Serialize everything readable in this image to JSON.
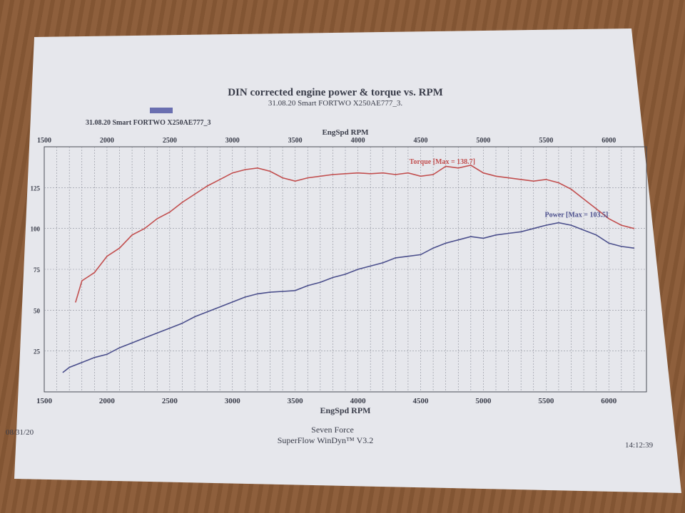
{
  "header": {
    "title": "DIN corrected engine power & torque vs. RPM",
    "subtitle": "31.08.20 Smart FORTWO   X250AE777_3.",
    "run_label": "31.08.20 Smart FORTWO   X250AE777_3",
    "legend_swatch_color": "#6a6fb0"
  },
  "footer": {
    "date": "08/31/20",
    "company": "Seven Force",
    "software": "SuperFlow WinDyn™ V3.2",
    "time": "14:12:39"
  },
  "chart_data": {
    "type": "line",
    "title": "DIN corrected engine power & torque vs. RPM",
    "xlabel": "EngSpd RPM",
    "x2label": "EngSpd RPM",
    "ylabel": "",
    "xlim": [
      1500,
      6300
    ],
    "ylim": [
      0,
      150
    ],
    "x_ticks": [
      1500,
      2000,
      2500,
      3000,
      3500,
      4000,
      4500,
      5000,
      5500,
      6000
    ],
    "y_ticks": [
      25,
      50,
      75,
      100,
      125
    ],
    "grid": true,
    "series": [
      {
        "name": "Torque",
        "annotation": "Torque [Max = 138.7]",
        "color": "#c24f4f",
        "points": [
          [
            1750,
            55
          ],
          [
            1800,
            68
          ],
          [
            1900,
            73
          ],
          [
            2000,
            83
          ],
          [
            2100,
            88
          ],
          [
            2200,
            96
          ],
          [
            2300,
            100
          ],
          [
            2400,
            106
          ],
          [
            2500,
            110
          ],
          [
            2600,
            116
          ],
          [
            2700,
            121
          ],
          [
            2800,
            126
          ],
          [
            2900,
            130
          ],
          [
            3000,
            134
          ],
          [
            3100,
            136
          ],
          [
            3200,
            137
          ],
          [
            3300,
            135
          ],
          [
            3400,
            131
          ],
          [
            3500,
            129
          ],
          [
            3600,
            131
          ],
          [
            3700,
            132
          ],
          [
            3800,
            133
          ],
          [
            3900,
            133.5
          ],
          [
            4000,
            134
          ],
          [
            4100,
            133.5
          ],
          [
            4200,
            134
          ],
          [
            4300,
            133
          ],
          [
            4400,
            134
          ],
          [
            4500,
            132
          ],
          [
            4600,
            133
          ],
          [
            4700,
            138
          ],
          [
            4800,
            137
          ],
          [
            4900,
            138.7
          ],
          [
            5000,
            134
          ],
          [
            5100,
            132
          ],
          [
            5200,
            131
          ],
          [
            5300,
            130
          ],
          [
            5400,
            129
          ],
          [
            5500,
            130
          ],
          [
            5600,
            128
          ],
          [
            5700,
            124
          ],
          [
            5800,
            118
          ],
          [
            5900,
            112
          ],
          [
            6000,
            106
          ],
          [
            6100,
            102
          ],
          [
            6200,
            100
          ]
        ]
      },
      {
        "name": "Power",
        "annotation": "Power  [Max = 103.5]",
        "color": "#4b4f8c",
        "points": [
          [
            1650,
            12
          ],
          [
            1700,
            15
          ],
          [
            1800,
            18
          ],
          [
            1900,
            21
          ],
          [
            2000,
            23
          ],
          [
            2100,
            27
          ],
          [
            2200,
            30
          ],
          [
            2300,
            33
          ],
          [
            2400,
            36
          ],
          [
            2500,
            39
          ],
          [
            2600,
            42
          ],
          [
            2700,
            46
          ],
          [
            2800,
            49
          ],
          [
            2900,
            52
          ],
          [
            3000,
            55
          ],
          [
            3100,
            58
          ],
          [
            3200,
            60
          ],
          [
            3300,
            61
          ],
          [
            3400,
            61.5
          ],
          [
            3500,
            62
          ],
          [
            3600,
            65
          ],
          [
            3700,
            67
          ],
          [
            3800,
            70
          ],
          [
            3900,
            72
          ],
          [
            4000,
            75
          ],
          [
            4100,
            77
          ],
          [
            4200,
            79
          ],
          [
            4300,
            82
          ],
          [
            4400,
            83
          ],
          [
            4500,
            84
          ],
          [
            4600,
            88
          ],
          [
            4700,
            91
          ],
          [
            4800,
            93
          ],
          [
            4900,
            95
          ],
          [
            5000,
            94
          ],
          [
            5100,
            96
          ],
          [
            5200,
            97
          ],
          [
            5300,
            98
          ],
          [
            5400,
            100
          ],
          [
            5500,
            102
          ],
          [
            5600,
            103.5
          ],
          [
            5700,
            102
          ],
          [
            5800,
            99
          ],
          [
            5900,
            96
          ],
          [
            6000,
            91
          ],
          [
            6100,
            89
          ],
          [
            6200,
            88
          ]
        ]
      }
    ]
  }
}
